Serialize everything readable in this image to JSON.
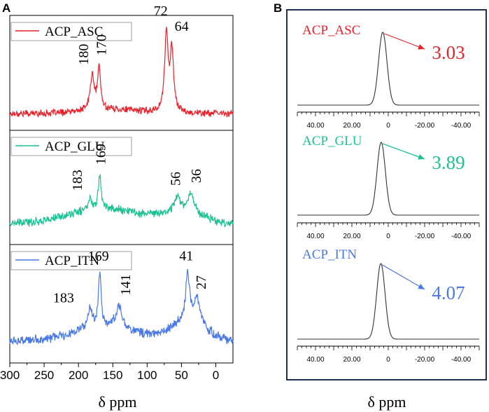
{
  "panel_a": {
    "label": "A",
    "xlabel": "δ ppm",
    "x_ticks": [
      "300",
      "250",
      "200",
      "150",
      "100",
      "50",
      "0"
    ],
    "x_tick_values": [
      300,
      250,
      200,
      150,
      100,
      50,
      0
    ]
  },
  "panel_b": {
    "label": "B",
    "xlabel": "δ ppm"
  },
  "chart_data": [
    {
      "type": "line",
      "title": "A",
      "xlabel": "δ ppm",
      "ylabel": "",
      "xlim": [
        300,
        -25
      ],
      "x_reversed": true,
      "series": [
        {
          "name": "ACP_ASC",
          "color": "#e8222b",
          "baseline": 0.0,
          "noise": 0.035,
          "peaks": [
            {
              "center": 180,
              "height": 0.45,
              "width": 3.5
            },
            {
              "center": 170,
              "height": 0.55,
              "width": 2.5
            },
            {
              "center": 72,
              "height": 1.0,
              "width": 3.0
            },
            {
              "center": 64,
              "height": 0.8,
              "width": 3.0
            }
          ],
          "broad": [
            {
              "center": 150,
              "height": 0.05,
              "width": 40
            }
          ],
          "peak_labels": [
            {
              "x": 180,
              "text": "180",
              "rotated": true
            },
            {
              "x": 170,
              "text": "170",
              "rotated": true
            },
            {
              "x": 72,
              "text": "72",
              "rotated": false
            },
            {
              "x": 64,
              "text": "64",
              "rotated": false
            }
          ]
        },
        {
          "name": "ACP_GLU",
          "color": "#1bc193",
          "baseline": 0.0,
          "noise": 0.04,
          "peaks": [
            {
              "center": 183,
              "height": 0.12,
              "width": 4
            },
            {
              "center": 169,
              "height": 0.42,
              "width": 2.5
            },
            {
              "center": 56,
              "height": 0.2,
              "width": 5
            },
            {
              "center": 36,
              "height": 0.25,
              "width": 5
            }
          ],
          "broad": [
            {
              "center": 160,
              "height": 0.18,
              "width": 55
            },
            {
              "center": 45,
              "height": 0.12,
              "width": 30
            }
          ],
          "peak_labels": [
            {
              "x": 183,
              "text": "183",
              "rotated": true
            },
            {
              "x": 169,
              "text": "169",
              "rotated": true
            },
            {
              "x": 56,
              "text": "56",
              "rotated": true
            },
            {
              "x": 36,
              "text": "36",
              "rotated": true
            }
          ]
        },
        {
          "name": "ACP_ITN",
          "color": "#4a78e6",
          "baseline": 0.0,
          "noise": 0.05,
          "peaks": [
            {
              "center": 183,
              "height": 0.25,
              "width": 4
            },
            {
              "center": 169,
              "height": 0.7,
              "width": 2.5
            },
            {
              "center": 141,
              "height": 0.3,
              "width": 5
            },
            {
              "center": 41,
              "height": 0.65,
              "width": 3.5
            },
            {
              "center": 27,
              "height": 0.35,
              "width": 5
            }
          ],
          "broad": [
            {
              "center": 160,
              "height": 0.2,
              "width": 45
            },
            {
              "center": 40,
              "height": 0.25,
              "width": 25
            }
          ],
          "peak_labels": [
            {
              "x": 183,
              "text": "183",
              "rotated": false
            },
            {
              "x": 169,
              "text": "169",
              "rotated": false
            },
            {
              "x": 141,
              "text": "141",
              "rotated": true
            },
            {
              "x": 41,
              "text": "41",
              "rotated": false
            },
            {
              "x": 27,
              "text": "27",
              "rotated": true
            }
          ]
        }
      ]
    },
    {
      "type": "line",
      "title": "B",
      "xlabel": "δ ppm",
      "xlim": [
        50,
        -50
      ],
      "x_reversed": true,
      "x_ticks": [
        "40.00",
        "20.00",
        "0",
        "-20.00",
        "-40.00"
      ],
      "x_tick_values": [
        40,
        20,
        0,
        -20,
        -40
      ],
      "series": [
        {
          "name": "ACP_ASC",
          "value_label": "3.03",
          "color": "#e8222b",
          "peak_center": 3.03,
          "height": 1.0,
          "width": 2.3
        },
        {
          "name": "ACP_GLU",
          "value_label": "3.89",
          "color": "#1bc193",
          "peak_center": 3.89,
          "height": 1.0,
          "width": 2.3
        },
        {
          "name": "ACP_ITN",
          "value_label": "4.07",
          "color": "#4a78e6",
          "peak_center": 4.07,
          "height": 1.0,
          "width": 2.3
        }
      ]
    }
  ]
}
